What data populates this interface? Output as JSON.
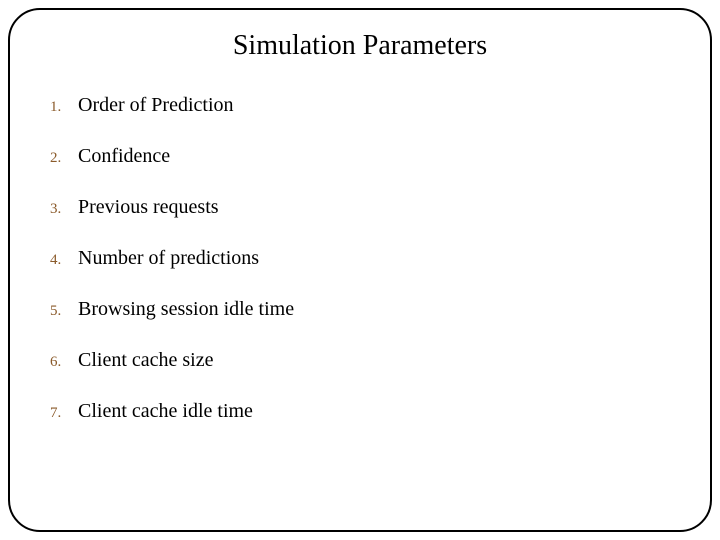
{
  "slide": {
    "title": "Simulation Parameters",
    "title_fontsize": 28,
    "title_color": "#000000",
    "background_color": "#ffffff",
    "border_color": "#000000",
    "border_radius": 32,
    "number_color": "#8a5a2a",
    "number_fontsize": 15,
    "item_color": "#000000",
    "item_fontsize": 20,
    "items": [
      {
        "num": "1.",
        "text": "Order of Prediction"
      },
      {
        "num": "2.",
        "text": "Confidence"
      },
      {
        "num": "3.",
        "text": "Previous requests"
      },
      {
        "num": "4.",
        "text": "Number of predictions"
      },
      {
        "num": "5.",
        "text": "Browsing session idle time"
      },
      {
        "num": "6.",
        "text": "Client cache size"
      },
      {
        "num": "7.",
        "text": "Client cache idle time"
      }
    ]
  }
}
